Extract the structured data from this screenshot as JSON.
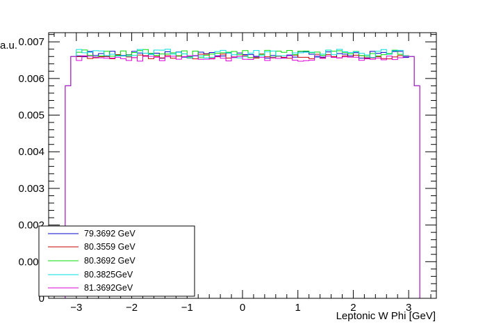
{
  "chart_data": {
    "type": "line",
    "style": "step-histogram",
    "xlabel": "Leptonic W Phi [GeV]",
    "ylabel": "a.u.",
    "xlim": [
      -3.5,
      3.5
    ],
    "ylim": [
      0,
      0.00725
    ],
    "x_ticks": [
      -3,
      -2,
      -1,
      0,
      1,
      2,
      3
    ],
    "x_tick_labels": [
      "−3",
      "−2",
      "−1",
      "0",
      "1",
      "2",
      "3"
    ],
    "y_ticks": [
      0,
      0.001,
      0.002,
      0.003,
      0.004,
      0.005,
      0.006,
      0.007
    ],
    "y_tick_labels": [
      "0",
      "0.001",
      "0.002",
      "0.003",
      "0.004",
      "0.005",
      "0.006",
      "0.007"
    ],
    "grid": false,
    "legend_position": "bottom-left",
    "bins": {
      "low": -3.2,
      "high": 3.2,
      "count": 64
    },
    "edge_bins": {
      "first": 0.0058,
      "second": 0.0066,
      "last": 0.0058,
      "second_last": 0.0066
    },
    "series": [
      {
        "name": "79.3692 GeV",
        "color": "#0000cc",
        "plateau": 0.00665,
        "amplitude": 0.0001,
        "seed": 3,
        "wrapper": "series-1"
      },
      {
        "name": "80.3559 GeV",
        "color": "#cc0000",
        "plateau": 0.0066,
        "amplitude": 7e-05,
        "seed": 7,
        "wrapper": "series-2"
      },
      {
        "name": "80.3692 GeV",
        "color": "#00dd00",
        "plateau": 0.00668,
        "amplitude": 0.00012,
        "seed": 11,
        "wrapper": "series-3"
      },
      {
        "name": "80.3825GeV",
        "color": "#00dddd",
        "plateau": 0.00668,
        "amplitude": 0.00012,
        "seed": 19,
        "wrapper": "series-4"
      },
      {
        "name": "81.3692GeV",
        "color": "#dd00dd",
        "plateau": 0.00655,
        "amplitude": 8e-05,
        "seed": 23,
        "wrapper": "series-5"
      }
    ]
  }
}
